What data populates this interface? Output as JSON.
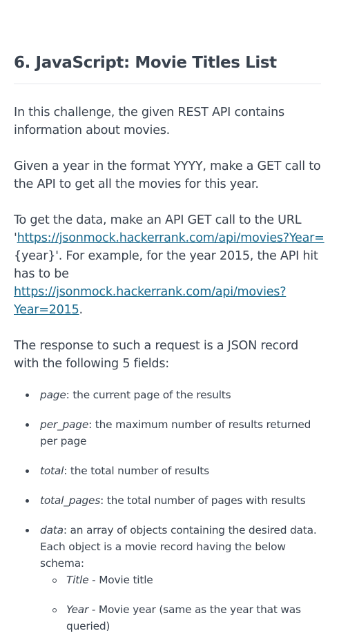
{
  "title": "6. JavaScript: Movie Titles List",
  "intro": "In this challenge, the given REST API contains information about movies.",
  "task": "Given a year in the format YYYY, make a GET call to the API to get all the movies for this year.",
  "data_access": {
    "before": "To get the data, make an API GET call to the URL '",
    "url_template": "https://jsonmock.hackerrank.com/api/movies?Year=",
    "after_url": "{year}'. For example, for the year 2015, the API hit has to be ",
    "example_url": "https://jsonmock.hackerrank.com/api/movies?Year=2015",
    "end": "."
  },
  "response_intro": "The response to such a request is a JSON record with the following 5 fields:",
  "fields": [
    {
      "name": "page",
      "desc": ": the current page of the results"
    },
    {
      "name": "per_page",
      "desc": ": the maximum number of results returned per page"
    },
    {
      "name": "total",
      "desc": ": the total number of results"
    },
    {
      "name": "total_pages",
      "desc": ": the total number of pages with results"
    },
    {
      "name": "data",
      "desc": ": an array of objects containing the desired data. Each object is a movie record having the below schema:"
    }
  ],
  "schema": [
    {
      "name": "Title",
      "desc": " - Movie title"
    },
    {
      "name": "Year",
      "desc": " - Movie year (same as the year that was queried)"
    }
  ]
}
